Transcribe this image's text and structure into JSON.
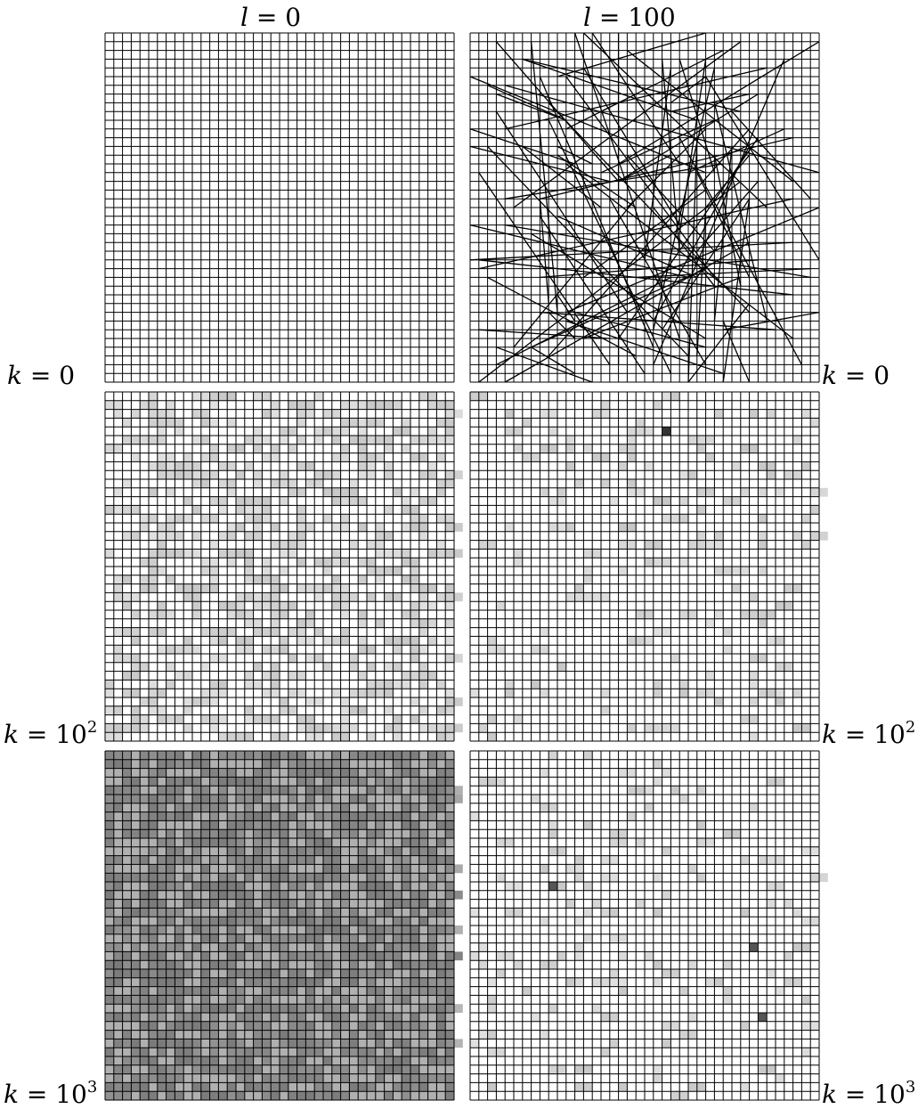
{
  "columns": [
    {
      "var": "l",
      "eq": " = ",
      "value": "0"
    },
    {
      "var": "l",
      "eq": " = ",
      "value": "100"
    }
  ],
  "rows": [
    {
      "var": "k",
      "eq": " = ",
      "base": "0",
      "exp": ""
    },
    {
      "var": "k",
      "eq": " = ",
      "base": "10",
      "exp": "2"
    },
    {
      "var": "k",
      "eq": " = ",
      "base": "10",
      "exp": "3"
    }
  ],
  "grid": {
    "cells": 40,
    "line_color": "#000000"
  },
  "panels": [
    {
      "id": "l0-k0",
      "mode": "lines",
      "random_lines": 0
    },
    {
      "id": "l100-k0",
      "mode": "lines",
      "random_lines": 100
    },
    {
      "id": "l0-k2",
      "mode": "density",
      "density": 0.35,
      "tone": "#c8c8c8",
      "background": "#ffffff"
    },
    {
      "id": "l100-k2",
      "mode": "density",
      "density": 0.09,
      "tone": "#c8c8c8",
      "background": "#ffffff",
      "dark_tone": "#333333",
      "dark_count": 1
    },
    {
      "id": "l0-k3",
      "mode": "density",
      "density": 0.55,
      "tone": "#7a7a7a",
      "background": "#b0b0b0"
    },
    {
      "id": "l100-k3",
      "mode": "density",
      "density": 0.08,
      "tone": "#c8c8c8",
      "background": "#ffffff",
      "dark_tone": "#555555",
      "dark_count": 3
    }
  ]
}
